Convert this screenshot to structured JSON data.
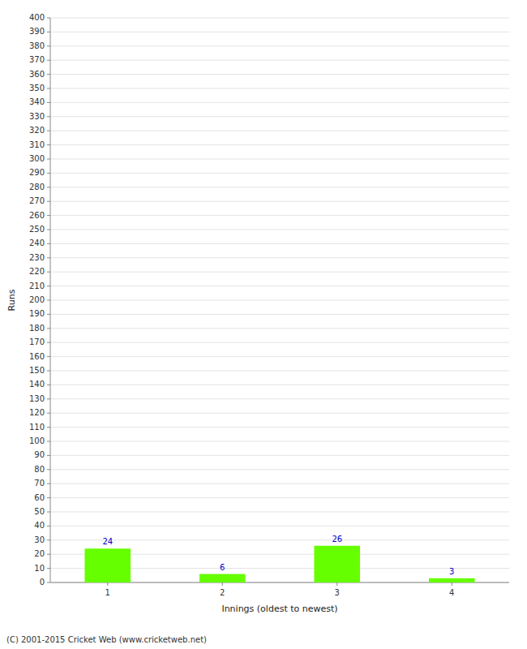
{
  "chart_data": {
    "type": "bar",
    "categories": [
      "1",
      "2",
      "3",
      "4"
    ],
    "values": [
      24,
      6,
      26,
      3
    ],
    "color": "#66ff00",
    "xlabel": "Innings (oldest to newest)",
    "ylabel": "Runs",
    "ylim": [
      0,
      400
    ],
    "yticks": [
      0,
      10,
      20,
      30,
      40,
      50,
      60,
      70,
      80,
      90,
      100,
      110,
      120,
      130,
      140,
      150,
      160,
      170,
      180,
      190,
      200,
      210,
      220,
      230,
      240,
      250,
      260,
      270,
      280,
      290,
      300,
      310,
      320,
      330,
      340,
      350,
      360,
      370,
      380,
      390,
      400
    ],
    "grid": true,
    "data_labels": true,
    "annotations": [
      "(C) 2001-2015 Cricket Web (www.cricketweb.net)"
    ]
  }
}
